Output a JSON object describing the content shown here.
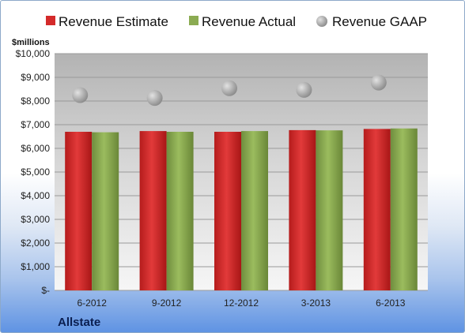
{
  "chart_data": {
    "type": "bar",
    "ylabel": "$millions",
    "company": "Allstate",
    "categories": [
      "6-2012",
      "9-2012",
      "12-2012",
      "3-2013",
      "6-2013"
    ],
    "ylim": [
      0,
      10000
    ],
    "yticks": [
      "$-",
      "$1,000",
      "$2,000",
      "$3,000",
      "$4,000",
      "$5,000",
      "$6,000",
      "$7,000",
      "$8,000",
      "$9,000",
      "$10,000"
    ],
    "series": [
      {
        "name": "Revenue Estimate",
        "type": "bar",
        "color": "#d42a2a",
        "values": [
          6700,
          6730,
          6700,
          6770,
          6820
        ]
      },
      {
        "name": "Revenue Actual",
        "type": "bar",
        "color": "#8bab52",
        "values": [
          6680,
          6700,
          6730,
          6760,
          6840
        ]
      },
      {
        "name": "Revenue GAAP",
        "type": "scatter",
        "color": "#a6a6a6",
        "values": [
          8250,
          8130,
          8540,
          8470,
          8780
        ]
      }
    ],
    "grid": true,
    "legend_position": "top"
  }
}
